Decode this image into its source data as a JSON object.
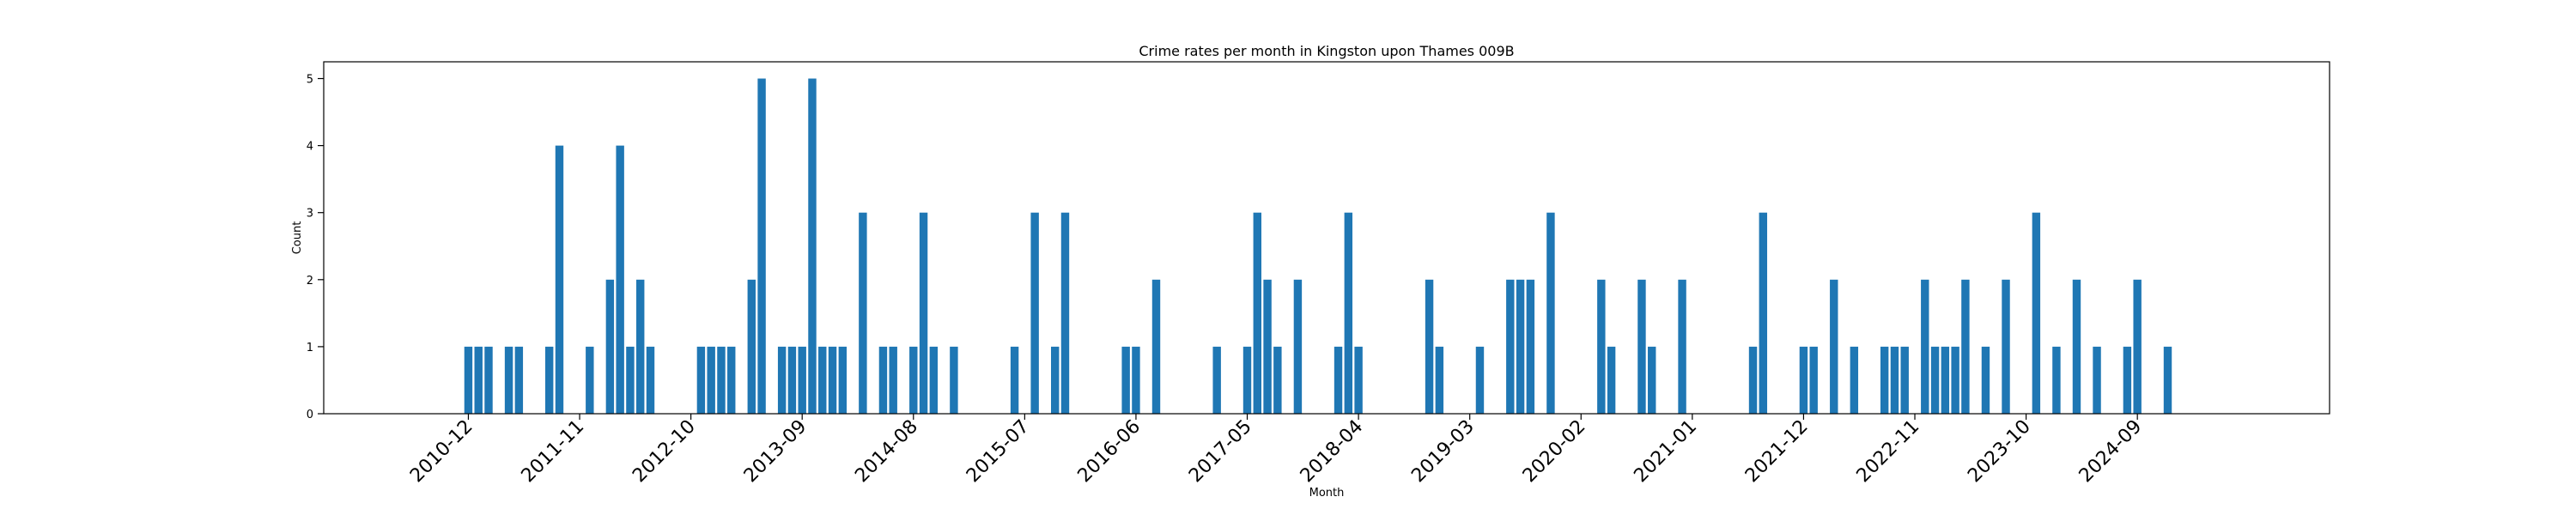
{
  "chart_data": {
    "type": "bar",
    "title": "Crime rates per month in Kingston upon Thames 009B",
    "xlabel": "Month",
    "ylabel": "Count",
    "ylim": [
      0,
      5.25
    ],
    "yticks": [
      "0",
      "1",
      "2",
      "3",
      "4",
      "5"
    ],
    "xticks": [
      "2010-12",
      "2011-11",
      "2012-10",
      "2013-09",
      "2014-08",
      "2015-07",
      "2016-06",
      "2017-05",
      "2018-04",
      "2019-03",
      "2020-02",
      "2021-01",
      "2021-12",
      "2022-11",
      "2023-10",
      "2024-09"
    ],
    "categories": [
      "2010-12",
      "2011-01",
      "2011-02",
      "2011-04",
      "2011-05",
      "2011-08",
      "2011-09",
      "2011-12",
      "2012-02",
      "2012-03",
      "2012-04",
      "2012-05",
      "2012-06",
      "2012-11",
      "2012-12",
      "2013-01",
      "2013-02",
      "2013-04",
      "2013-05",
      "2013-07",
      "2013-08",
      "2013-09",
      "2013-10",
      "2013-11",
      "2013-12",
      "2014-01",
      "2014-03",
      "2014-05",
      "2014-06",
      "2014-08",
      "2014-09",
      "2014-10",
      "2014-12",
      "2015-06",
      "2015-08",
      "2015-10",
      "2015-11",
      "2016-05",
      "2016-06",
      "2016-08",
      "2017-02",
      "2017-05",
      "2017-06",
      "2017-07",
      "2017-08",
      "2017-10",
      "2018-02",
      "2018-03",
      "2018-04",
      "2018-11",
      "2018-12",
      "2019-04",
      "2019-07",
      "2019-08",
      "2019-09",
      "2019-11",
      "2020-04",
      "2020-05",
      "2020-08",
      "2020-09",
      "2020-12",
      "2021-07",
      "2021-08",
      "2021-12",
      "2022-01",
      "2022-03",
      "2022-05",
      "2022-08",
      "2022-09",
      "2022-10",
      "2022-12",
      "2023-01",
      "2023-02",
      "2023-03",
      "2023-04",
      "2023-06",
      "2023-08",
      "2023-11",
      "2024-01",
      "2024-03",
      "2024-05",
      "2024-08",
      "2024-09",
      "2024-12"
    ],
    "values": [
      1,
      1,
      1,
      1,
      1,
      1,
      4,
      1,
      2,
      4,
      1,
      2,
      1,
      1,
      1,
      1,
      1,
      2,
      5,
      1,
      1,
      1,
      5,
      1,
      1,
      1,
      3,
      1,
      1,
      1,
      3,
      1,
      1,
      1,
      3,
      1,
      3,
      1,
      1,
      2,
      1,
      1,
      3,
      2,
      1,
      2,
      1,
      3,
      1,
      2,
      1,
      1,
      2,
      2,
      2,
      3,
      2,
      1,
      2,
      1,
      2,
      1,
      3,
      1,
      1,
      2,
      1,
      1,
      1,
      1,
      2,
      1,
      1,
      1,
      2,
      1,
      2,
      3,
      1,
      2,
      1,
      1,
      2,
      1
    ]
  }
}
